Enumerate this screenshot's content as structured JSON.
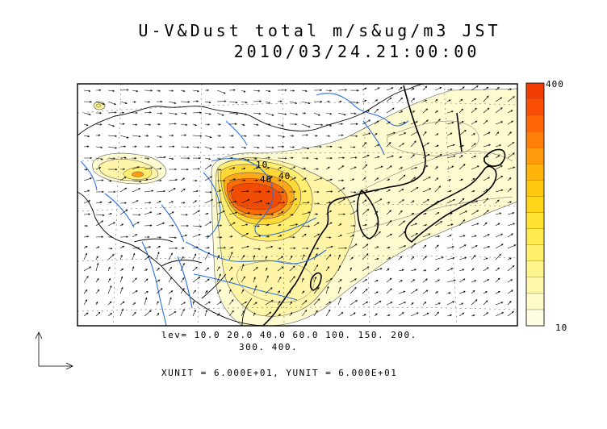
{
  "title_line1": "U-V&Dust total m/s&ug/m3 JST",
  "title_line2": "2010/03/24.21:00:00",
  "lev_line1": "lev= 10.0 20.0 40.0 60.0 100. 150. 200.",
  "lev_line2": "300. 400.",
  "unit_line": "XUNIT = 6.000E+01, YUNIT = 6.000E+01",
  "contour_labels": [
    "10",
    "40",
    "40"
  ],
  "colors": {
    "river": "#2a6fe0",
    "border": "#000000",
    "frame": "#000000"
  },
  "chart_data": {
    "type": "heatmap",
    "title": "U-V&Dust total m/s&ug/m3 JST",
    "subtitle": "2010/03/24.21:00:00",
    "colorbar": {
      "levels": [
        10,
        20,
        40,
        60,
        100,
        150,
        200,
        300,
        400
      ],
      "min_label": "10",
      "max_label": "400",
      "colors": [
        "#fffde0",
        "#fffbc8",
        "#fff8aa",
        "#fff58c",
        "#fff06e",
        "#ffea50",
        "#ffe232",
        "#ffd618",
        "#ffc810",
        "#ffb40c",
        "#ff9a0a",
        "#ff8008",
        "#ff6406",
        "#fa4e04",
        "#f03c02"
      ],
      "placement": "right"
    },
    "xunit": "6.000E+01",
    "yunit": "6.000E+01",
    "grid": true
  }
}
